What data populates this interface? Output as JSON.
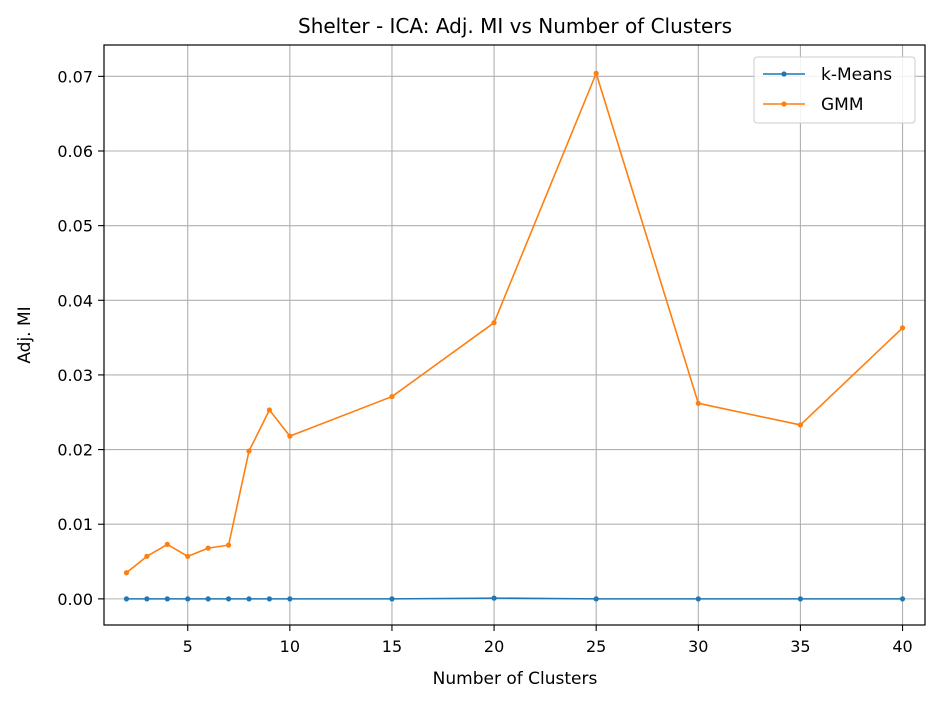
{
  "chart_data": {
    "type": "line",
    "title": "Shelter - ICA: Adj. MI vs Number of Clusters",
    "xlabel": "Number of Clusters",
    "ylabel": "Adj. MI",
    "x": [
      2,
      3,
      4,
      5,
      6,
      7,
      8,
      9,
      10,
      15,
      20,
      25,
      30,
      35,
      40
    ],
    "xlim": [
      0.9,
      41.1
    ],
    "ylim": [
      -0.0035,
      0.0742
    ],
    "xticks": [
      "5",
      "10",
      "15",
      "20",
      "25",
      "30",
      "35",
      "40"
    ],
    "yticks": [
      "0.00",
      "0.01",
      "0.02",
      "0.03",
      "0.04",
      "0.05",
      "0.06",
      "0.07"
    ],
    "grid": true,
    "legend_position": "top-right",
    "series": [
      {
        "name": "k-Means",
        "color": "#1f77b4",
        "values": [
          0.0,
          0.0,
          0.0,
          0.0,
          0.0,
          0.0,
          0.0,
          0.0,
          0.0,
          0.0,
          0.0001,
          0.0,
          0.0,
          0.0,
          0.0
        ]
      },
      {
        "name": "GMM",
        "color": "#ff7f0e",
        "values": [
          0.0035,
          0.0057,
          0.0073,
          0.0057,
          0.0068,
          0.0072,
          0.0198,
          0.0253,
          0.0218,
          0.0271,
          0.037,
          0.0704,
          0.0262,
          0.0233,
          0.0363
        ]
      }
    ]
  }
}
